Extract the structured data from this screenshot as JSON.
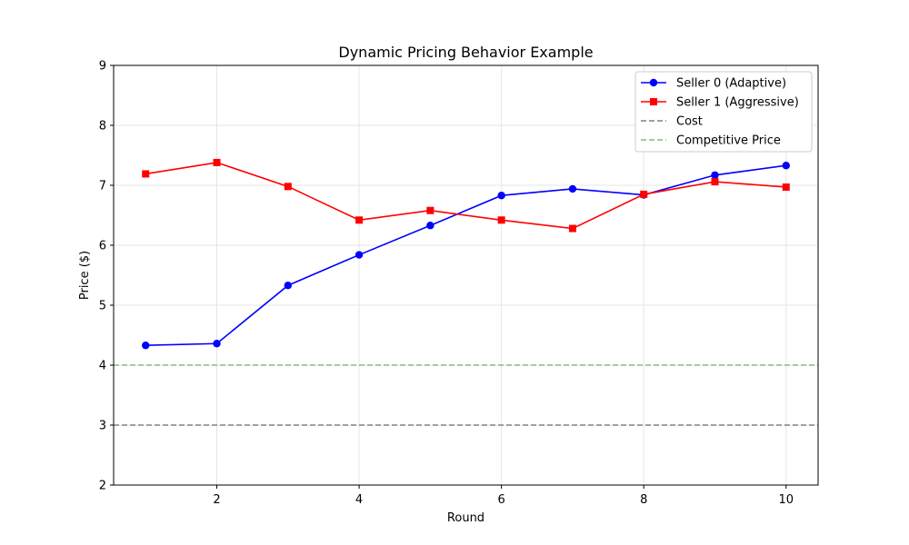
{
  "chart_data": {
    "type": "line",
    "title": "Dynamic Pricing Behavior Example",
    "xlabel": "Round",
    "ylabel": "Price ($)",
    "xlim": [
      0.55,
      10.45
    ],
    "ylim": [
      2,
      9
    ],
    "xticks": [
      2,
      4,
      6,
      8,
      10
    ],
    "yticks": [
      2,
      3,
      4,
      5,
      6,
      7,
      8,
      9
    ],
    "grid": true,
    "legend_position": "top-right",
    "x": [
      1,
      2,
      3,
      4,
      5,
      6,
      7,
      8,
      9,
      10
    ],
    "series": [
      {
        "name": "Seller 0 (Adaptive)",
        "color": "#0000ff",
        "marker": "circle",
        "values": [
          4.33,
          4.36,
          5.33,
          5.84,
          6.33,
          6.83,
          6.94,
          6.84,
          7.17,
          7.33
        ]
      },
      {
        "name": "Seller 1 (Aggressive)",
        "color": "#ff0000",
        "marker": "square",
        "values": [
          7.19,
          7.38,
          6.98,
          6.42,
          6.58,
          6.42,
          6.28,
          6.85,
          7.06,
          6.97
        ]
      }
    ],
    "reference_lines": [
      {
        "name": "Cost",
        "value": 3,
        "color": "#808080",
        "dash": "dashed"
      },
      {
        "name": "Competitive Price",
        "value": 4,
        "color": "#7fbf7f",
        "dash": "dashed"
      }
    ]
  }
}
